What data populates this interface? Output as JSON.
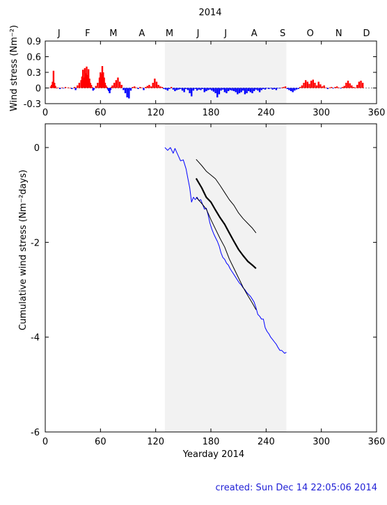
{
  "figure": {
    "title": "2014",
    "created_label": "created:  Sun Dec 14 22:05:06 2014"
  },
  "chart_data": [
    {
      "type": "bar",
      "name": "daily wind stress",
      "ylabel": "Wind stress (Nm⁻²)",
      "xlim": [
        0,
        360
      ],
      "ylim": [
        -0.3,
        0.9
      ],
      "x_ticks": [
        0,
        60,
        120,
        180,
        240,
        300,
        360
      ],
      "y_ticks": [
        -0.3,
        0,
        0.3,
        0.6,
        0.9
      ],
      "y_tick_labels": [
        "-0.3",
        "0",
        "0.3",
        "0.6",
        "0.9"
      ],
      "month_labels": [
        "J",
        "F",
        "M",
        "A",
        "M",
        "J",
        "J",
        "A",
        "S",
        "O",
        "N",
        "D"
      ],
      "month_positions": [
        15,
        46,
        74,
        105,
        135,
        166,
        196,
        227,
        258,
        288,
        319,
        349
      ],
      "shaded_range": [
        130,
        262
      ],
      "colors": {
        "positive": "#ff0000",
        "negative": "#0000ff",
        "shading": "#f2f2f2"
      },
      "x": [
        6,
        7,
        8,
        9,
        10,
        11,
        12,
        14,
        16,
        18,
        20,
        22,
        25,
        27,
        29,
        32,
        33,
        35,
        37,
        39,
        40,
        41,
        42,
        43,
        44,
        45,
        46,
        47,
        48,
        49,
        50,
        51,
        52,
        53,
        55,
        57,
        59,
        60,
        61,
        62,
        63,
        64,
        65,
        66,
        67,
        68,
        69,
        70,
        71,
        72,
        73,
        75,
        77,
        79,
        81,
        83,
        85,
        87,
        89,
        91,
        93,
        95,
        97,
        99,
        101,
        103,
        105,
        107,
        109,
        111,
        113,
        115,
        117,
        119,
        121,
        123,
        125,
        127,
        129,
        131,
        133,
        135,
        137,
        139,
        141,
        143,
        145,
        147,
        149,
        151,
        153,
        155,
        157,
        159,
        161,
        163,
        165,
        167,
        169,
        171,
        173,
        175,
        177,
        179,
        181,
        183,
        185,
        187,
        189,
        191,
        193,
        195,
        197,
        199,
        201,
        203,
        205,
        207,
        209,
        211,
        213,
        215,
        217,
        219,
        221,
        223,
        225,
        227,
        229,
        231,
        233,
        235,
        237,
        239,
        241,
        243,
        245,
        247,
        249,
        251,
        253,
        255,
        257,
        259,
        261,
        263,
        265,
        267,
        269,
        271,
        273,
        275,
        277,
        279,
        281,
        283,
        285,
        287,
        289,
        291,
        293,
        295,
        297,
        299,
        301,
        303,
        305,
        307,
        309,
        311,
        313,
        315,
        317,
        319,
        321,
        323,
        325,
        327,
        329,
        331,
        333,
        335,
        337,
        339,
        341,
        343,
        345
      ],
      "values": [
        0.03,
        0.06,
        0.12,
        0.33,
        0.1,
        0.04,
        0,
        0.01,
        -0.02,
        0.01,
        -0.01,
        0.02,
        0.01,
        0,
        -0.02,
        0.02,
        -0.04,
        0.05,
        0.1,
        0.15,
        0.22,
        0.35,
        0.2,
        0.38,
        0.28,
        0.41,
        0.25,
        0.36,
        0.18,
        0.1,
        0.06,
        0.02,
        -0.05,
        -0.03,
        0.04,
        0.1,
        0.2,
        0.3,
        0.27,
        0.42,
        0.3,
        0.2,
        0.1,
        0.05,
        0.02,
        -0.03,
        -0.06,
        -0.1,
        -0.04,
        0.02,
        0.05,
        0.1,
        0.15,
        0.2,
        0.12,
        0.06,
        -0.04,
        -0.1,
        -0.18,
        -0.2,
        -0.05,
        0.02,
        0.03,
        0.01,
        -0.02,
        0.02,
        0.01,
        -0.04,
        0.02,
        0.04,
        0.06,
        0.03,
        0.1,
        0.18,
        0.12,
        0.06,
        0.03,
        0.02,
        -0.02,
        -0.03,
        -0.05,
        -0.02,
        0.02,
        -0.03,
        -0.06,
        -0.04,
        -0.03,
        -0.02,
        -0.05,
        -0.08,
        -0.02,
        -0.04,
        -0.1,
        -0.16,
        -0.05,
        -0.02,
        -0.05,
        -0.03,
        -0.04,
        -0.02,
        -0.08,
        -0.06,
        -0.04,
        -0.03,
        -0.05,
        -0.07,
        -0.1,
        -0.18,
        -0.12,
        -0.05,
        -0.03,
        -0.08,
        -0.1,
        -0.06,
        -0.04,
        -0.05,
        -0.06,
        -0.08,
        -0.12,
        -0.1,
        -0.08,
        -0.05,
        -0.12,
        -0.1,
        -0.06,
        -0.08,
        -0.1,
        -0.06,
        -0.03,
        -0.05,
        -0.08,
        -0.04,
        -0.02,
        -0.03,
        -0.01,
        -0.02,
        -0.01,
        -0.03,
        -0.02,
        -0.04,
        -0.01,
        -0.01,
        0.01,
        0.02,
        0.03,
        -0.02,
        -0.04,
        -0.06,
        -0.08,
        -0.05,
        -0.03,
        -0.02,
        0.02,
        0.05,
        0.1,
        0.15,
        0.12,
        0.08,
        0.14,
        0.16,
        0.1,
        0.05,
        0.12,
        0.07,
        0.03,
        0.05,
        0.01,
        -0.02,
        0.01,
        0.02,
        -0.01,
        0.02,
        0.03,
        0.01,
        -0.01,
        0.02,
        0.04,
        0.1,
        0.14,
        0.09,
        0.05,
        0.02,
        0.01,
        0.06,
        0.12,
        0.14,
        0.1
      ]
    },
    {
      "type": "line",
      "name": "cumulative wind stress",
      "xlabel": "Yearday 2014",
      "ylabel": "Cumulative wind stress (Nm⁻²days)",
      "xlim": [
        0,
        360
      ],
      "ylim": [
        -6,
        0.5
      ],
      "x_ticks": [
        0,
        60,
        120,
        180,
        240,
        300,
        360
      ],
      "y_ticks": [
        -6,
        -4,
        -2,
        0
      ],
      "y_tick_labels": [
        "-6",
        "-4",
        "-2",
        "0"
      ],
      "shaded_range": [
        130,
        262
      ],
      "series": [
        {
          "color": "#0000ff",
          "width": 1,
          "x": [
            130,
            133,
            136,
            139,
            141,
            144,
            147,
            150,
            153,
            155,
            157,
            159,
            161,
            163,
            165,
            167,
            169,
            171,
            173,
            175,
            177,
            179,
            181,
            183,
            185,
            187,
            189,
            191,
            193,
            195,
            197,
            199,
            201,
            203,
            205,
            207,
            209,
            211,
            213,
            215,
            217,
            219,
            221,
            223,
            225,
            227,
            229,
            231,
            233,
            235,
            237,
            239,
            241,
            243,
            245,
            247,
            249,
            251,
            253,
            255,
            257,
            260,
            262
          ],
          "y": [
            0,
            -0.06,
            0,
            -0.12,
            -0.02,
            -0.15,
            -0.28,
            -0.26,
            -0.45,
            -0.65,
            -0.85,
            -1.15,
            -1.05,
            -1.1,
            -1.05,
            -1.12,
            -1.1,
            -1.2,
            -1.3,
            -1.28,
            -1.42,
            -1.6,
            -1.72,
            -1.82,
            -1.9,
            -1.98,
            -2.08,
            -2.22,
            -2.32,
            -2.36,
            -2.44,
            -2.48,
            -2.56,
            -2.62,
            -2.68,
            -2.74,
            -2.8,
            -2.86,
            -2.9,
            -2.96,
            -3.0,
            -3.06,
            -3.1,
            -3.14,
            -3.2,
            -3.26,
            -3.38,
            -3.52,
            -3.56,
            -3.62,
            -3.62,
            -3.8,
            -3.88,
            -3.93,
            -4.0,
            -4.05,
            -4.1,
            -4.15,
            -4.22,
            -4.28,
            -4.28,
            -4.34,
            -4.32
          ]
        },
        {
          "color": "#000000",
          "width": 2.2,
          "x": [
            164,
            170,
            175,
            180,
            185,
            190,
            195,
            200,
            205,
            210,
            215,
            220,
            225,
            229
          ],
          "y": [
            -0.65,
            -0.85,
            -1.05,
            -1.15,
            -1.32,
            -1.48,
            -1.62,
            -1.8,
            -1.98,
            -2.15,
            -2.28,
            -2.4,
            -2.48,
            -2.55
          ]
        },
        {
          "color": "#000000",
          "width": 1,
          "x": [
            164,
            170,
            175,
            180,
            185,
            190,
            195,
            200,
            205,
            210,
            215,
            220,
            225,
            229
          ],
          "y": [
            -0.25,
            -0.38,
            -0.5,
            -0.58,
            -0.66,
            -0.8,
            -0.95,
            -1.1,
            -1.22,
            -1.38,
            -1.5,
            -1.6,
            -1.7,
            -1.8
          ]
        },
        {
          "color": "#000000",
          "width": 1,
          "x": [
            164,
            170,
            175,
            180,
            185,
            190,
            195,
            200,
            205,
            210,
            215,
            220,
            225,
            229
          ],
          "y": [
            -1.05,
            -1.18,
            -1.3,
            -1.52,
            -1.72,
            -1.92,
            -2.1,
            -2.35,
            -2.55,
            -2.75,
            -2.95,
            -3.12,
            -3.28,
            -3.42
          ]
        }
      ]
    }
  ]
}
